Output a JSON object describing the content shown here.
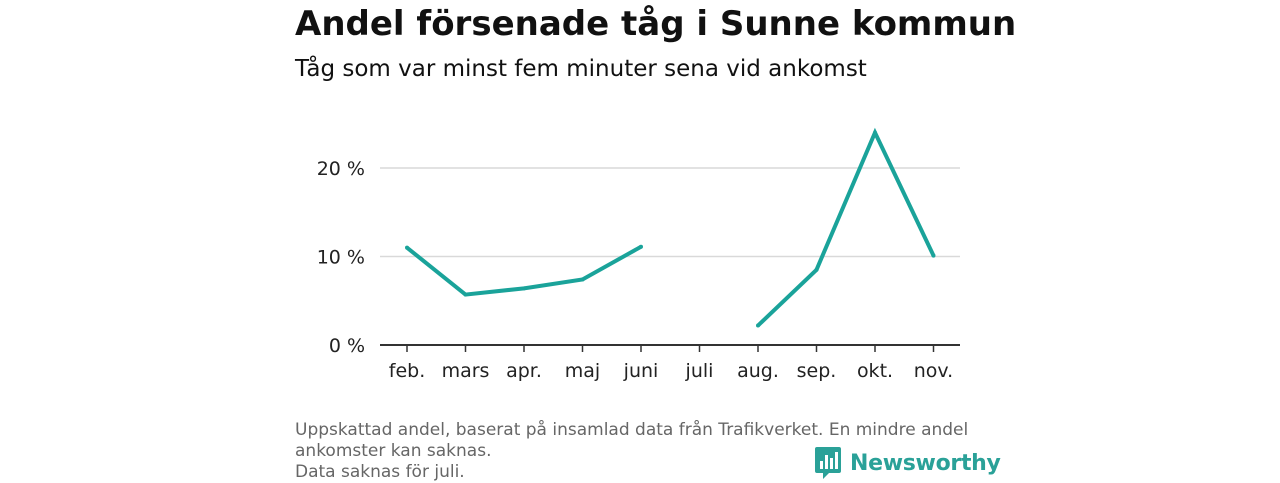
{
  "chart_data": {
    "type": "line",
    "title": "Andel försenade tåg i Sunne kommun",
    "subtitle": "Tåg som var minst fem minuter sena vid ankomst",
    "categories": [
      "feb.",
      "mars",
      "apr.",
      "maj",
      "juni",
      "juli",
      "aug.",
      "sep.",
      "okt.",
      "nov."
    ],
    "series": [
      {
        "name": "Andel försenade tåg",
        "color": "#1aa39a",
        "values": [
          11.0,
          5.7,
          6.4,
          7.4,
          11.1,
          null,
          2.2,
          8.5,
          24.0,
          10.1
        ]
      }
    ],
    "yticks": [
      {
        "value": 0,
        "label": "0 %"
      },
      {
        "value": 10,
        "label": "10 %"
      },
      {
        "value": 20,
        "label": "20 %"
      }
    ],
    "ylim": [
      0,
      24.5
    ],
    "grid": true
  },
  "footer": {
    "note": "Uppskattad andel, baserat på insamlad data från Trafikverket. En mindre andel ankomster kan saknas.",
    "missing": "Data saknas för juli."
  },
  "brand": {
    "name": "Newsworthy",
    "icon": "newsworthy-logo-icon",
    "color": "#2aa198"
  },
  "colors": {
    "line": "#1aa39a",
    "grid": "#d9d9d9",
    "axis": "#333333"
  }
}
